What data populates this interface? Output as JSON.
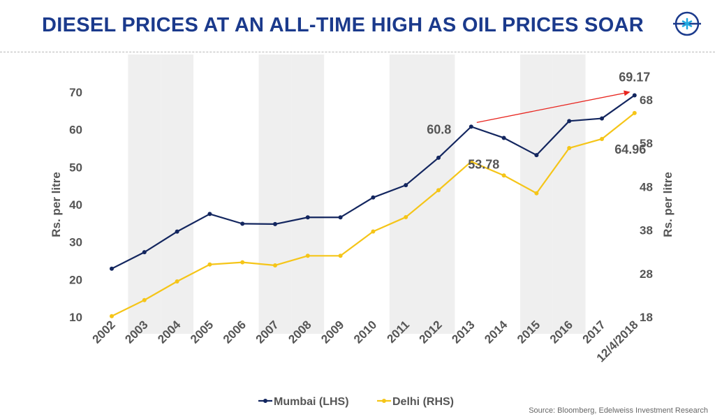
{
  "title": "DIESEL PRICES AT AN ALL-TIME HIGH AS OIL PRICES SOAR",
  "source": "Source: Bloomberg, Edelweiss Investment Research",
  "colors": {
    "mumbai": "#13265f",
    "delhi": "#f5c518",
    "title": "#1b3a8c",
    "arrow": "#e8251f",
    "band": "#efefef"
  },
  "chart_data": {
    "type": "line",
    "categories": [
      "2002",
      "2003",
      "2004",
      "2005",
      "2006",
      "2007",
      "2008",
      "2009",
      "2010",
      "2011",
      "2012",
      "2013",
      "2014",
      "2015",
      "2016",
      "2017",
      "12/4/2018"
    ],
    "series": [
      {
        "name": "Mumbai (LHS)",
        "axis": "left",
        "values": [
          22.9,
          27.3,
          32.8,
          37.5,
          34.9,
          34.8,
          36.6,
          36.6,
          41.9,
          45.2,
          52.5,
          60.8,
          57.8,
          53.2,
          62.3,
          63.0,
          69.17
        ]
      },
      {
        "name": "Delhi (RHS)",
        "axis": "right",
        "values": [
          18.2,
          21.9,
          26.2,
          30.1,
          30.6,
          29.9,
          32.1,
          32.1,
          37.7,
          41.0,
          47.2,
          53.78,
          50.6,
          46.5,
          56.9,
          59.0,
          64.96
        ]
      }
    ],
    "left_axis": {
      "label": "Rs. per litre",
      "min": 10,
      "max": 70,
      "ticks": [
        10,
        20,
        30,
        40,
        50,
        60,
        70
      ]
    },
    "right_axis": {
      "label": "Rs. per litre",
      "min": 18,
      "max": 68,
      "ticks": [
        18,
        28,
        38,
        48,
        58,
        68
      ]
    },
    "annotations": [
      {
        "text": "69.17",
        "series": 0,
        "index": 16
      },
      {
        "text": "60.8",
        "series": 0,
        "index": 11
      },
      {
        "text": "53.78",
        "series": 1,
        "index": 11
      },
      {
        "text": "64.96",
        "series": 1,
        "index": 16
      }
    ],
    "legend_position": "bottom-center"
  }
}
